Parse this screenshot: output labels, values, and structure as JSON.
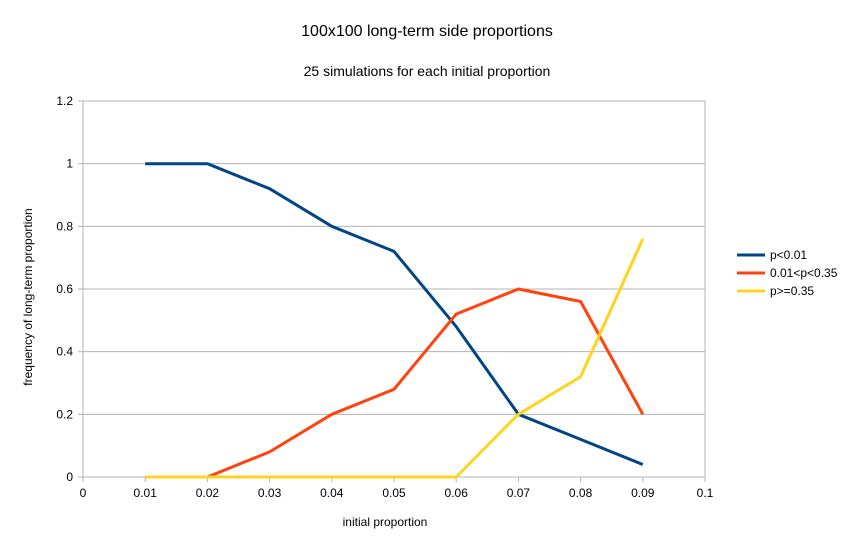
{
  "chart_data": {
    "type": "line",
    "title": "100x100 long-term side proportions",
    "subtitle": "25 simulations for each initial proportion",
    "xlabel": "initial proportion",
    "ylabel": "frequency of long-term proportion",
    "xlim": [
      0,
      0.1
    ],
    "ylim": [
      0,
      1.2
    ],
    "x_ticks": [
      "0",
      "0.01",
      "0.02",
      "0.03",
      "0.04",
      "0.05",
      "0.06",
      "0.07",
      "0.08",
      "0.09",
      "0.1"
    ],
    "y_ticks": [
      "0",
      "0.2",
      "0.4",
      "0.6",
      "0.8",
      "1",
      "1.2"
    ],
    "grid": true,
    "legend_position": "right",
    "x": [
      0.01,
      0.02,
      0.03,
      0.04,
      0.05,
      0.06,
      0.07,
      0.08,
      0.09
    ],
    "series": [
      {
        "name": "p<0.01",
        "color": "#004586",
        "values": [
          1,
          1,
          0.92,
          0.8,
          0.72,
          0.48,
          0.2,
          0.12,
          0.04
        ]
      },
      {
        "name": "0.01<p<0.35",
        "color": "#ff420e",
        "values": [
          0,
          0,
          0.08,
          0.2,
          0.28,
          0.52,
          0.6,
          0.56,
          0.2
        ]
      },
      {
        "name": "p>=0.35",
        "color": "#ffd320",
        "values": [
          0,
          0,
          0,
          0,
          0,
          0,
          0.2,
          0.32,
          0.76
        ]
      }
    ]
  }
}
